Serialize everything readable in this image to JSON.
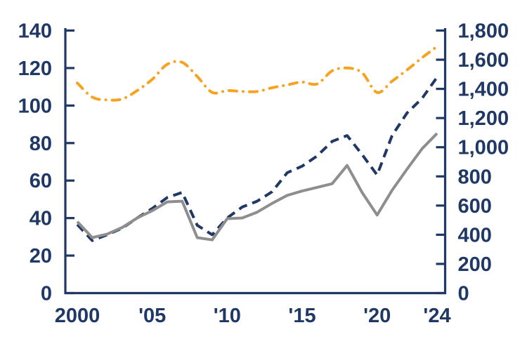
{
  "chart_data": {
    "type": "line",
    "title": "",
    "legend": "none",
    "grid": false,
    "x": [
      2000,
      2001,
      2002,
      2003,
      2004,
      2005,
      2006,
      2007,
      2008,
      2009,
      2010,
      2011,
      2012,
      2013,
      2014,
      2015,
      2016,
      2017,
      2018,
      2019,
      2020,
      2021,
      2022,
      2023,
      2024
    ],
    "x_ticks": [
      {
        "x": 2000,
        "label": "2000"
      },
      {
        "x": 2005,
        "label": "'05"
      },
      {
        "x": 2010,
        "label": "'10"
      },
      {
        "x": 2015,
        "label": "'15"
      },
      {
        "x": 2020,
        "label": "'20"
      },
      {
        "x": 2024,
        "label": "'24"
      }
    ],
    "left_axis": {
      "min": 0,
      "max": 140,
      "step": 20,
      "tick_labels": [
        "0",
        "20",
        "40",
        "60",
        "80",
        "100",
        "120",
        "140"
      ]
    },
    "right_axis": {
      "min": 0,
      "max": 1800,
      "step": 200,
      "tick_labels": [
        "0",
        "200",
        "400",
        "600",
        "800",
        "1,000",
        "1,200",
        "1,400",
        "1,600",
        "1,800"
      ]
    },
    "series": [
      {
        "name": "amber-dash-dot-line",
        "axis": "left",
        "line_style": "dash-dot",
        "color": "#F7A321",
        "smooth": true,
        "values": [
          112,
          104.5,
          103,
          103.5,
          108,
          114,
          122,
          123,
          115.5,
          107,
          108,
          107.5,
          107.5,
          109.5,
          111,
          112.5,
          111.5,
          118.5,
          120,
          117.5,
          107,
          113,
          119,
          125.5,
          131.5
        ]
      },
      {
        "name": "navy-dashed-line",
        "axis": "right",
        "line_style": "dashed",
        "color": "#1F3864",
        "smooth": false,
        "values": [
          470,
          360,
          400,
          445,
          515,
          580,
          655,
          690,
          465,
          400,
          515,
          590,
          630,
          695,
          825,
          870,
          940,
          1040,
          1080,
          950,
          810,
          1080,
          1235,
          1335,
          1480
        ]
      },
      {
        "name": "gray-solid-line",
        "axis": "right",
        "line_style": "solid",
        "color": "#8E8E8E",
        "smooth": false,
        "values": [
          490,
          380,
          405,
          450,
          515,
          565,
          625,
          630,
          380,
          365,
          510,
          515,
          555,
          615,
          670,
          700,
          725,
          750,
          875,
          690,
          535,
          705,
          850,
          990,
          1095
        ]
      }
    ],
    "colors": {
      "axis": "#1F3865",
      "background": "#ffffff"
    }
  }
}
